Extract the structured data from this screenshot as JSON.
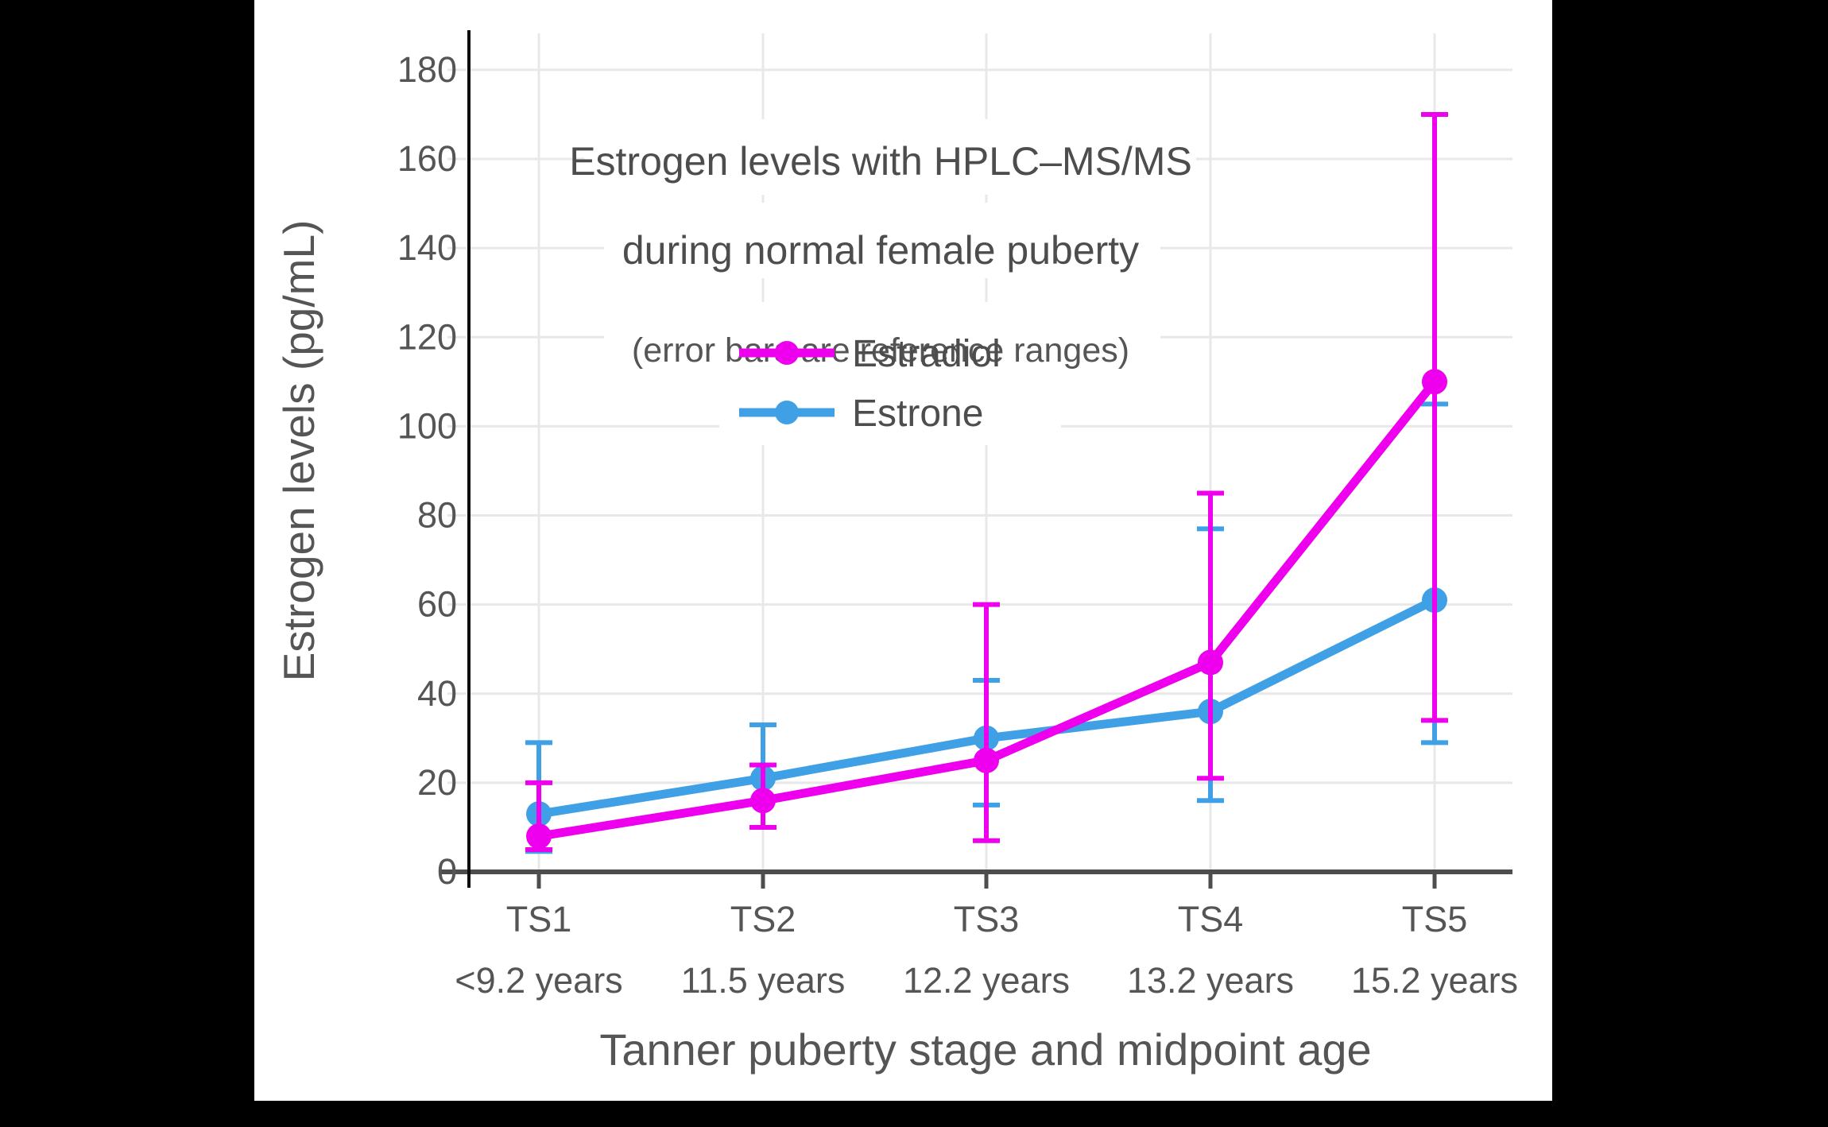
{
  "window": {
    "background_color": "#000000",
    "card_color": "#ffffff"
  },
  "chart_data": {
    "type": "line",
    "title_line1": "Estrogen levels with HPLC–MS/MS",
    "title_line2": "during normal female puberty",
    "subtitle": "(error bars are reference ranges)",
    "xlabel": "Tanner puberty stage and midpoint age",
    "ylabel": "Estrogen levels (pg/mL)",
    "categories": [
      "TS1",
      "TS2",
      "TS3",
      "TS4",
      "TS5"
    ],
    "category_sublabels": [
      "<9.2 years",
      "11.5 years",
      "12.2 years",
      "13.2 years",
      "15.2 years"
    ],
    "ylim": [
      0,
      180
    ],
    "ytick_step": 20,
    "ytick_labels": [
      "0",
      "20",
      "40",
      "60",
      "80",
      "100",
      "120",
      "140",
      "160",
      "180"
    ],
    "grid": true,
    "legend_position": "inside-upper-left",
    "error_bar_meaning": "reference ranges",
    "unit": "pg/mL",
    "series": [
      {
        "name": "Estradiol",
        "slug": "estradiol",
        "color": "#EE00EE",
        "values": [
          8,
          16,
          25,
          47,
          110
        ],
        "error_low": [
          5,
          10,
          7,
          21,
          34
        ],
        "error_high": [
          20,
          24,
          60,
          85,
          170
        ]
      },
      {
        "name": "Estrone",
        "slug": "estrone",
        "color": "#3FA0E6",
        "values": [
          13,
          21,
          30,
          36,
          61
        ],
        "error_low": [
          4.6,
          10,
          15,
          16,
          29
        ],
        "error_high": [
          29,
          33,
          43,
          77,
          105
        ]
      }
    ]
  },
  "colors": {
    "tick_text": "#555555",
    "title_text": "#4d4d4d",
    "gridline": "#e8e8e8",
    "y_axis_line": "#0d0d0d",
    "x_axis_line": "#4d4d4d"
  }
}
